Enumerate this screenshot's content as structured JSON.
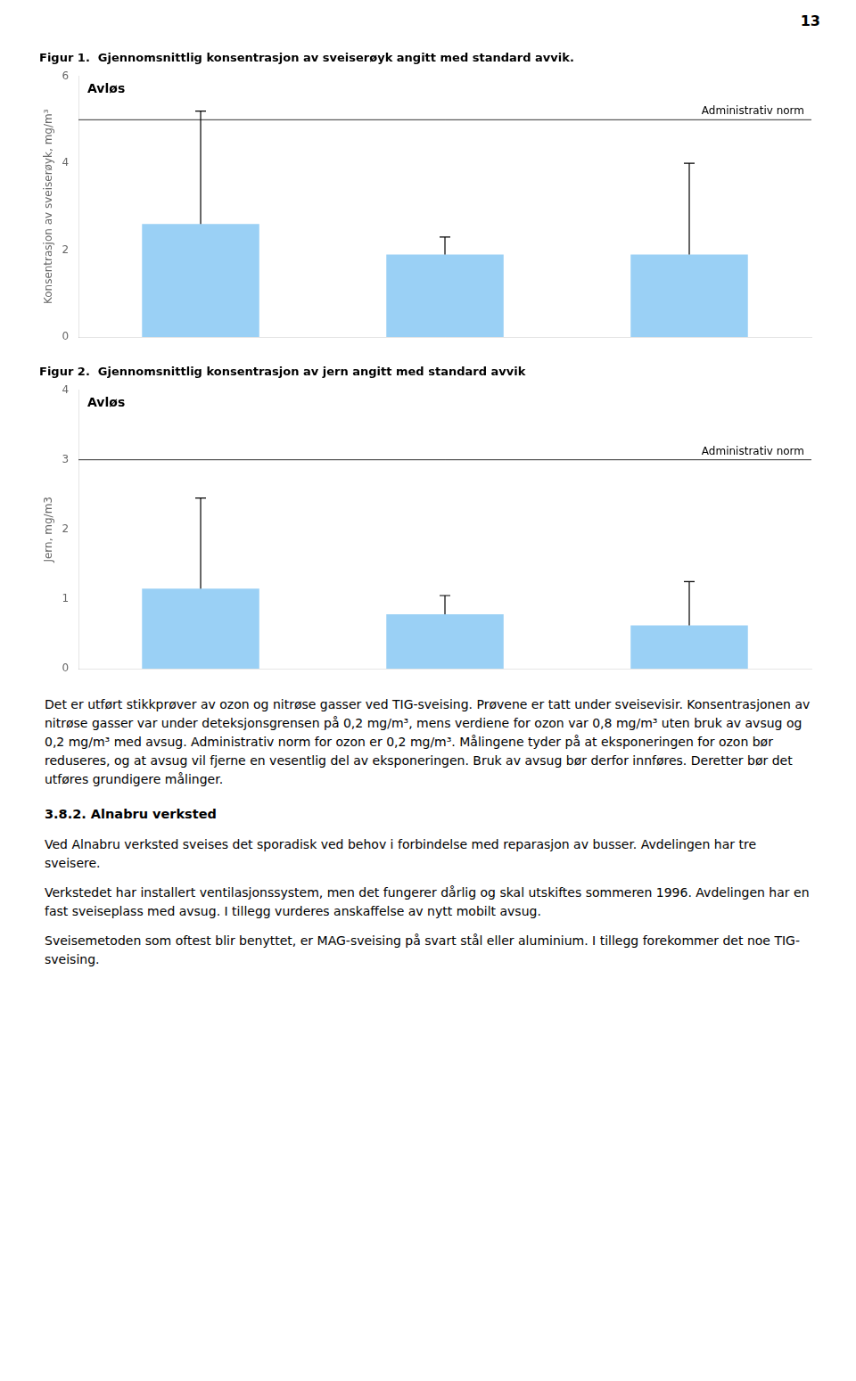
{
  "chart_data": [
    {
      "type": "bar",
      "title": "Figur 1.  Gjennomsnittlig konsentrasjon av sveiserøyk angitt med standard avvik.",
      "ylabel": "Konsentrasjon av sveiserøyk, mg/m³",
      "categories": [
        null,
        null,
        null
      ],
      "values": [
        2.6,
        1.9,
        1.9
      ],
      "error_up": [
        2.6,
        0.4,
        2.1
      ],
      "error_down": [
        0.0,
        0.0,
        0.0
      ],
      "hlines": [
        {
          "y": 5.0,
          "label": "Administrativ norm"
        }
      ],
      "annotations": [
        "Avløs"
      ],
      "ylim": [
        0,
        6
      ],
      "yticks": [
        0,
        2,
        4,
        6
      ],
      "grid": false,
      "tick_labels": "y"
    },
    {
      "type": "bar",
      "title": "Figur 2.  Gjennomsnittlig konsentrasjon av jern angitt med standard avvik",
      "ylabel": "Jern, mg/m3",
      "categories": [
        null,
        null,
        null
      ],
      "values": [
        1.15,
        0.78,
        0.62
      ],
      "error_up": [
        1.3,
        0.27,
        0.63
      ],
      "error_down": [
        0.0,
        0.0,
        0.0
      ],
      "hlines": [
        {
          "y": 3.0,
          "label": "Administrativ norm"
        }
      ],
      "annotations": [
        "Avløs"
      ],
      "ylim": [
        0,
        4
      ],
      "yticks": [
        0,
        1,
        2,
        3,
        4
      ],
      "grid": false,
      "tick_labels": "y"
    }
  ],
  "page_number": "13",
  "body_before": [
    "Det er utført stikkprøver av ozon og nitrøse gasser ved TIG-sveising. Prøvene er tatt under sveisevisir.  Konsentrasjonen av nitrøse gasser var under deteksjonsgrensen på 0,2 mg/m³, mens verdiene for ozon var 0,8 mg/m³ uten bruk av avsug og 0,2 mg/m³ med avsug. Administrativ norm for ozon er 0,2 mg/m³. Målingene tyder på at eksponeringen for ozon bør reduseres, og at avsug vil fjerne en vesentlig del av eksponeringen.  Bruk av avsug bør derfor innføres. Deretter bør det utføres grundigere målinger."
  ],
  "section_heading": "3.8.2.  Alnabru verksted",
  "body_after": [
    "Ved Alnabru verksted sveises det sporadisk ved behov i forbindelse med reparasjon av busser. Avdelingen har tre sveisere.",
    "Verkstedet har installert ventilasjonssystem, men det fungerer dårlig og skal utskiftes sommeren 1996. Avdelingen har en fast sveiseplass med avsug. I tillegg vurderes anskaffelse av nytt mobilt avsug.",
    "Sveisemetoden som oftest blir benyttet, er MAG-sveising på svart stål eller aluminium. I tillegg forekommer det noe TIG-sveising."
  ]
}
